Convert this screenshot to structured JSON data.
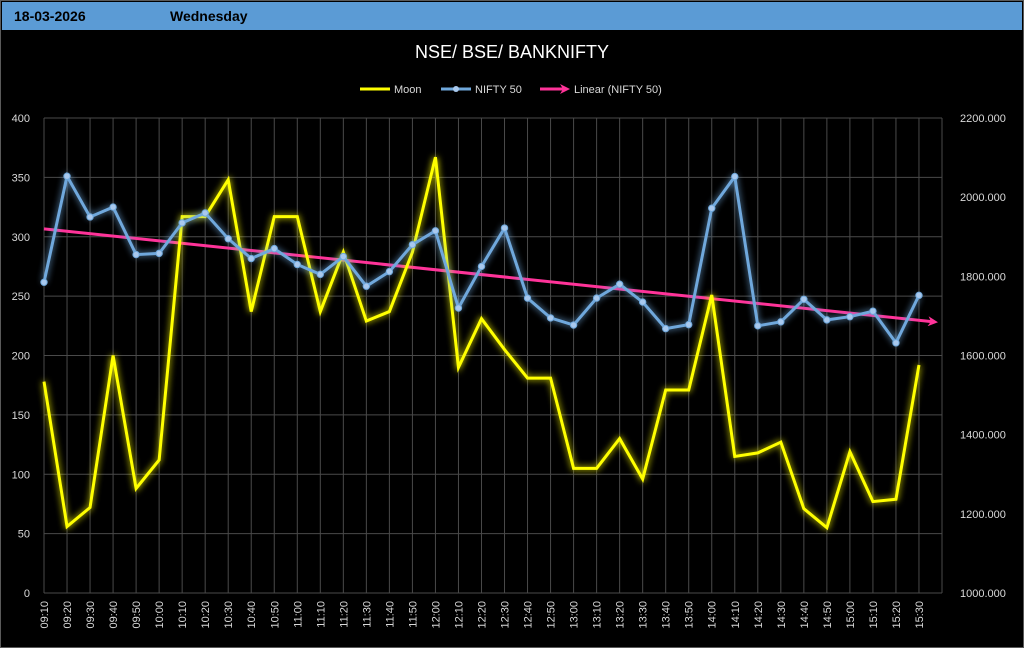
{
  "header": {
    "date": "18-03-2026",
    "day": "Wednesday",
    "bar_color": "#5b9bd5"
  },
  "chart_data": {
    "type": "line",
    "title": "NSE/ BSE/ BANKNIFTY",
    "legend_position": "top-center",
    "grid": true,
    "categories": [
      "09:10",
      "09:20",
      "09:30",
      "09:40",
      "09:50",
      "10:00",
      "10:10",
      "10:20",
      "10:30",
      "10:40",
      "10:50",
      "11:00",
      "11:10",
      "11:20",
      "11:30",
      "11:40",
      "11:50",
      "12:00",
      "12:10",
      "12:20",
      "12:30",
      "12:40",
      "12:50",
      "13:00",
      "13:10",
      "13:20",
      "13:30",
      "13:40",
      "13:50",
      "14:00",
      "14:10",
      "14:20",
      "14:30",
      "14:40",
      "14:50",
      "15:00",
      "15:10",
      "15:20",
      "15:30"
    ],
    "y_left": {
      "min": 0,
      "max": 400,
      "step": 50,
      "ticks": [
        "0",
        "50",
        "100",
        "150",
        "200",
        "250",
        "300",
        "350",
        "400"
      ]
    },
    "y_right": {
      "min": 1000,
      "max": 2200,
      "step": 200,
      "ticks": [
        "1000.000",
        "1200.000",
        "1400.000",
        "1600.000",
        "1800.000",
        "2000.000",
        "2200.000"
      ]
    },
    "series": [
      {
        "name": "Moon",
        "axis": "left",
        "color": "#ffff00",
        "values": [
          178,
          56,
          72,
          200,
          88,
          112,
          317,
          317,
          348,
          237,
          317,
          317,
          237,
          287,
          229,
          237,
          287,
          367,
          190,
          231,
          205,
          181,
          181,
          105,
          105,
          130,
          96,
          171,
          171,
          251,
          115,
          118,
          127,
          71,
          55,
          119,
          77,
          79,
          192
        ]
      },
      {
        "name": "NIFTY 50",
        "axis": "right",
        "color": "#6fa8dc",
        "values": [
          1785,
          2053,
          1950,
          1975,
          1855,
          1858,
          1935,
          1960,
          1895,
          1845,
          1870,
          1830,
          1805,
          1850,
          1775,
          1812,
          1880,
          1915,
          1720,
          1825,
          1922,
          1745,
          1695,
          1677,
          1745,
          1780,
          1735,
          1668,
          1678,
          1972,
          2052,
          1675,
          1685,
          1742,
          1690,
          1698,
          1712,
          1632,
          1752
        ]
      }
    ],
    "trendline": {
      "name": "Linear (NIFTY 50)",
      "axis": "right",
      "color": "#ff3399",
      "start": 1920,
      "end": 1685
    }
  }
}
